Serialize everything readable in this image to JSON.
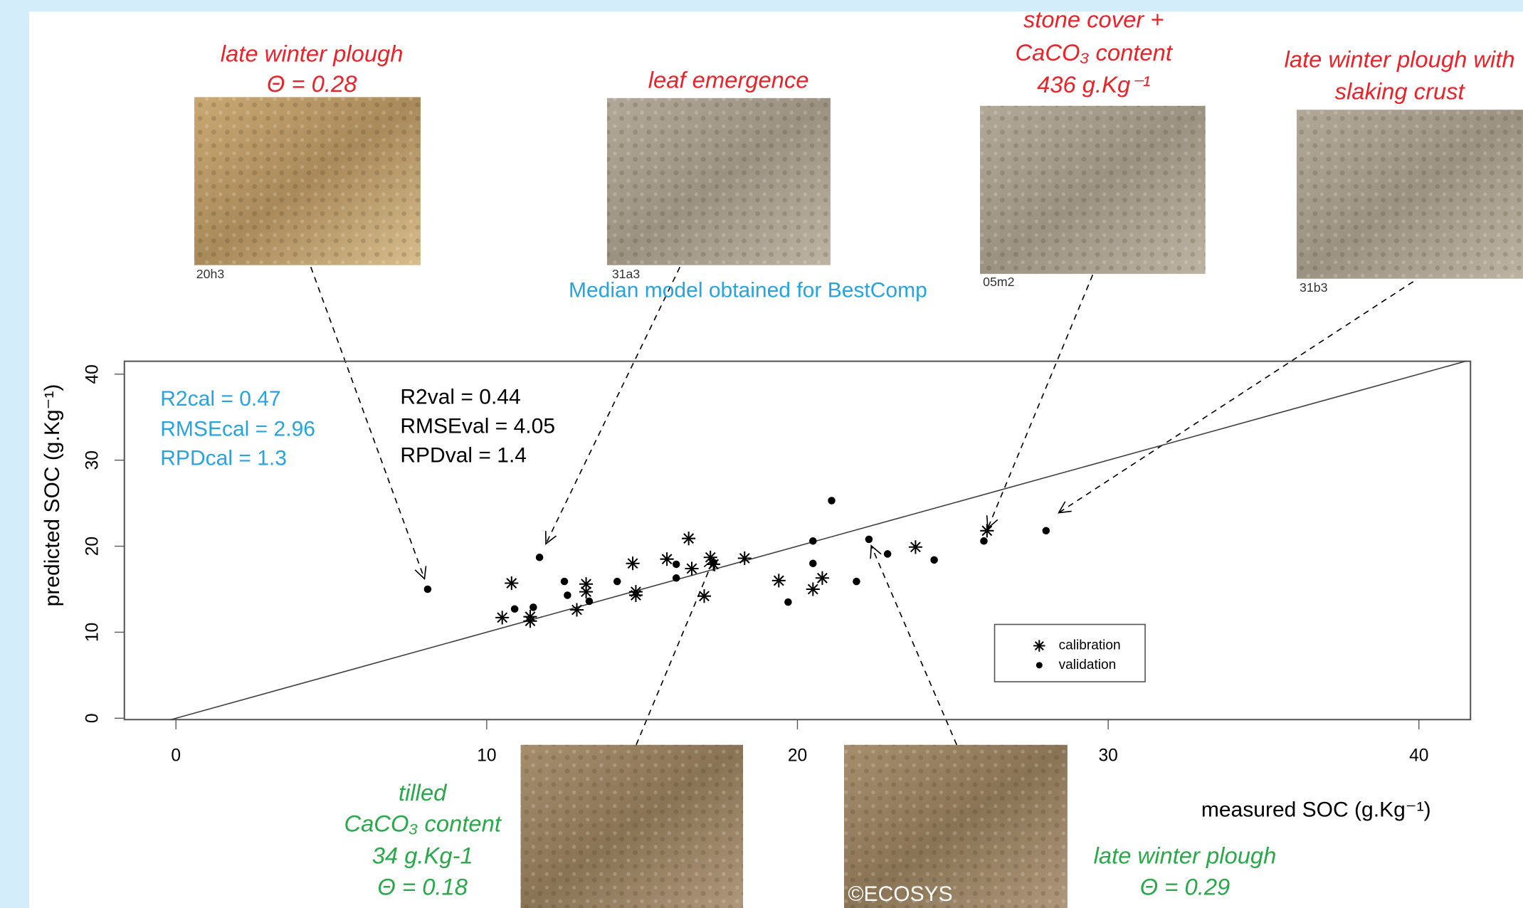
{
  "chart_data": {
    "type": "scatter",
    "subtitle": "Median model obtained for BestComp",
    "x_label": "measured SOC (g.Kg⁻¹)",
    "y_label": "predicted  SOC (g.Kg⁻¹)",
    "xlim": [
      -1.66,
      41.66
    ],
    "ylim": [
      -0.16,
      41.5
    ],
    "xticks": [
      0,
      10,
      20,
      30,
      40
    ],
    "yticks": [
      0,
      10,
      20,
      30,
      40
    ],
    "legend_position": "lower right",
    "series": [
      {
        "name": "calibration",
        "marker": "asterisk",
        "color": "#000000",
        "x": [
          10.5,
          10.8,
          11.4,
          11.4,
          12.9,
          13.2,
          13.2,
          14.7,
          14.8,
          14.8,
          15.8,
          16.5,
          16.6,
          17.0,
          17.2,
          17.3,
          18.3,
          19.4,
          20.5,
          20.8,
          23.8,
          26.1
        ],
        "values": [
          11.7,
          15.7,
          11.8,
          11.3,
          12.6,
          15.6,
          14.7,
          18.0,
          14.7,
          14.3,
          18.5,
          20.9,
          17.4,
          14.2,
          18.7,
          17.9,
          18.6,
          16.0,
          15.0,
          16.3,
          19.9,
          21.8
        ]
      },
      {
        "name": "validation",
        "marker": "dot",
        "color": "#000000",
        "x": [
          8.1,
          11.7,
          10.9,
          11.5,
          12.5,
          12.6,
          13.3,
          14.2,
          16.1,
          16.1,
          17.3,
          20.5,
          20.5,
          19.7,
          21.1,
          21.9,
          22.3,
          22.9,
          24.4,
          26.0,
          28.0
        ],
        "values": [
          15.0,
          18.7,
          12.7,
          12.9,
          15.9,
          14.3,
          13.6,
          15.9,
          17.9,
          16.3,
          18.1,
          20.6,
          18.0,
          13.5,
          25.3,
          15.9,
          20.8,
          19.1,
          18.4,
          20.6,
          21.8
        ]
      }
    ],
    "stats_cal": {
      "color": "#29a3dd",
      "lines": [
        "R2cal = 0.47",
        "RMSEcal = 2.96",
        "RPDcal = 1.3"
      ]
    },
    "stats_val": {
      "color": "#000000",
      "lines": [
        "R2val = 0.44",
        "RMSEval = 4.05",
        "RPDval = 1.4"
      ]
    },
    "subtitle_color": "#29a3dd",
    "photos": [
      {
        "caption": [
          "late winter plough",
          "Θ = 0.28"
        ],
        "id": "20h3",
        "color": "#e8242a"
      },
      {
        "caption": [
          "leaf emergence"
        ],
        "id": "31a3",
        "color": "#e8242a"
      },
      {
        "caption": [
          "stone cover +",
          "CaCO₃  content",
          "436 g.Kg⁻¹"
        ],
        "id": "05m2",
        "color": "#e8242a"
      },
      {
        "caption": [
          "late winter plough with",
          "slaking crust"
        ],
        "id": "31b3",
        "color": "#e8242a"
      },
      {
        "caption": [
          "tilled",
          "CaCO₃  content",
          "34 g.Kg-1",
          "Θ = 0.18"
        ],
        "color": "#2aa84a"
      },
      {
        "caption": [
          "late winter plough",
          "Θ = 0.29"
        ],
        "color": "#2aa84a"
      }
    ],
    "credit": "©ECOSYS"
  }
}
